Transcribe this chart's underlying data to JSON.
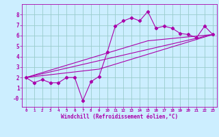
{
  "background_color": "#cceeff",
  "grid_color": "#99cccc",
  "line_color": "#aa00aa",
  "marker_color": "#aa00aa",
  "xlabel": "Windchill (Refroidissement éolien,°C)",
  "xlabel_color": "#aa00aa",
  "tick_color": "#aa00aa",
  "xlim": [
    -0.5,
    23.5
  ],
  "ylim": [
    -0.8,
    9.0
  ],
  "xticks": [
    0,
    1,
    2,
    3,
    4,
    5,
    6,
    7,
    8,
    9,
    10,
    11,
    12,
    13,
    14,
    15,
    16,
    17,
    18,
    19,
    20,
    21,
    22,
    23
  ],
  "yticks": [
    0,
    1,
    2,
    3,
    4,
    5,
    6,
    7,
    8
  ],
  "ytick_labels": [
    "-0",
    "1",
    "2",
    "3",
    "4",
    "5",
    "6",
    "7",
    "8"
  ],
  "series1_x": [
    0,
    1,
    2,
    3,
    4,
    5,
    6,
    7,
    8,
    9,
    10,
    11,
    12,
    13,
    14,
    15,
    16,
    17,
    18,
    19,
    20,
    21,
    22,
    23
  ],
  "series1_y": [
    2.0,
    1.5,
    1.8,
    1.5,
    1.5,
    2.0,
    2.0,
    -0.2,
    1.6,
    2.1,
    4.4,
    6.9,
    7.4,
    7.7,
    7.4,
    8.3,
    6.7,
    6.9,
    6.7,
    6.2,
    6.1,
    5.8,
    6.9,
    6.1
  ],
  "series2_x": [
    0,
    23
  ],
  "series2_y": [
    2.0,
    6.1
  ],
  "series3_x": [
    0,
    9,
    23
  ],
  "series3_y": [
    2.0,
    2.8,
    6.1
  ],
  "series4_x": [
    0,
    15,
    23
  ],
  "series4_y": [
    2.0,
    5.5,
    6.1
  ]
}
